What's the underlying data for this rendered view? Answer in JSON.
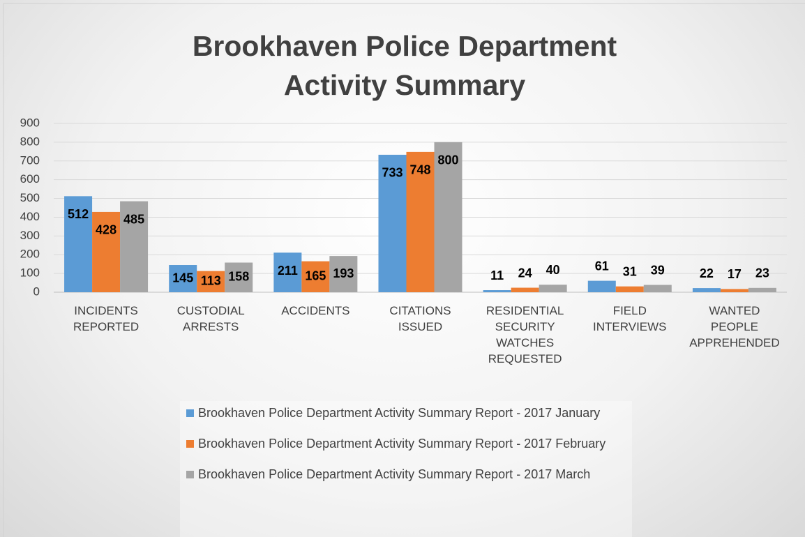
{
  "chart_data": {
    "type": "bar",
    "title": "Brookhaven Police Department Activity Summary",
    "categories": [
      "INCIDENTS REPORTED",
      "CUSTODIAL ARRESTS",
      "ACCIDENTS",
      "CITATIONS ISSUED",
      "RESIDENTIAL SECURITY WATCHES REQUESTED",
      "FIELD INTERVIEWS",
      "WANTED PEOPLE APPREHENDED"
    ],
    "series": [
      {
        "name": "Brookhaven Police Department Activity Summary Report - 2017 January",
        "color": "#5b9bd5",
        "values": [
          512,
          145,
          211,
          733,
          11,
          61,
          22
        ]
      },
      {
        "name": "Brookhaven Police Department Activity Summary Report - 2017 February",
        "color": "#ed7d31",
        "values": [
          428,
          113,
          165,
          748,
          24,
          31,
          17
        ]
      },
      {
        "name": "Brookhaven Police Department Activity Summary Report - 2017 March",
        "color": "#a5a5a5",
        "values": [
          485,
          158,
          193,
          800,
          40,
          39,
          23
        ]
      }
    ],
    "ylim": [
      0,
      900
    ],
    "yticks": [
      0,
      100,
      200,
      300,
      400,
      500,
      600,
      700,
      800,
      900
    ],
    "grid": true,
    "legend": "bottom"
  }
}
